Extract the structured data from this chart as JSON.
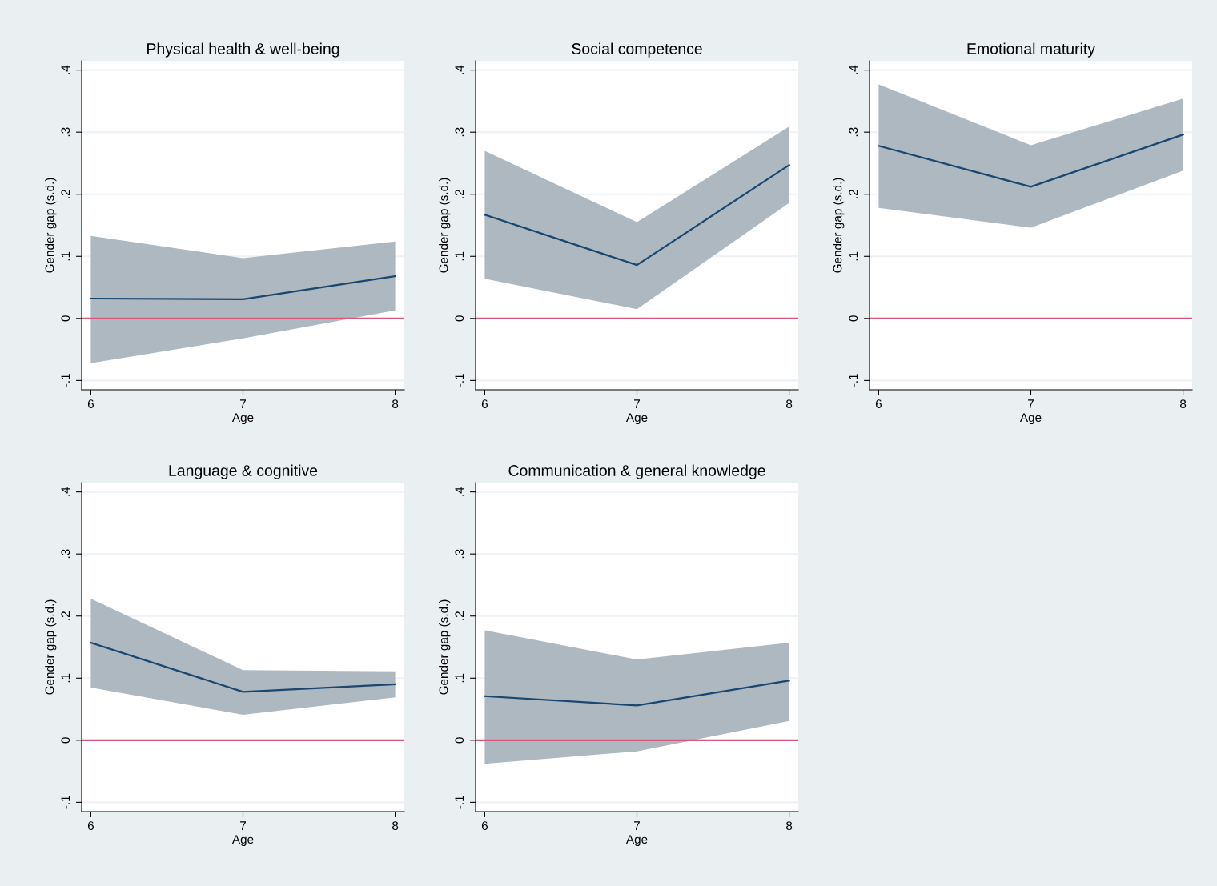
{
  "chart_data": [
    {
      "type": "line",
      "title": "Physical health & well-being",
      "xlabel": "Age",
      "ylabel": "Gender gap (s.d.)",
      "x": [
        6,
        7,
        8
      ],
      "xlim": [
        5.94,
        8.06
      ],
      "xticks": [
        6,
        7,
        8
      ],
      "ylim": [
        -0.115,
        0.415
      ],
      "yticks": [
        {
          "value": -0.1,
          "label": "-.1"
        },
        {
          "value": 0,
          "label": "0"
        },
        {
          "value": 0.1,
          "label": ".1"
        },
        {
          "value": 0.2,
          "label": ".2"
        },
        {
          "value": 0.3,
          "label": ".3"
        },
        {
          "value": 0.4,
          "label": ".4"
        }
      ],
      "grid": "y",
      "legend": false,
      "series": [
        {
          "color": "#1a476f",
          "values": [
            0.032,
            0.031,
            0.068
          ],
          "lower": [
            -0.072,
            -0.032,
            0.013
          ],
          "upper": [
            0.133,
            0.097,
            0.124
          ]
        }
      ],
      "ref_lines": [
        {
          "axis": "y",
          "value": 0,
          "color": "#d8577a"
        }
      ]
    },
    {
      "type": "line",
      "title": "Social competence",
      "xlabel": "Age",
      "ylabel": "Gender gap (s.d.)",
      "x": [
        6,
        7,
        8
      ],
      "xlim": [
        5.94,
        8.06
      ],
      "xticks": [
        6,
        7,
        8
      ],
      "ylim": [
        -0.115,
        0.415
      ],
      "yticks": [
        {
          "value": -0.1,
          "label": "-.1"
        },
        {
          "value": 0,
          "label": "0"
        },
        {
          "value": 0.1,
          "label": ".1"
        },
        {
          "value": 0.2,
          "label": ".2"
        },
        {
          "value": 0.3,
          "label": ".3"
        },
        {
          "value": 0.4,
          "label": ".4"
        }
      ],
      "grid": "y",
      "legend": false,
      "series": [
        {
          "color": "#1a476f",
          "values": [
            0.167,
            0.086,
            0.247
          ],
          "lower": [
            0.064,
            0.015,
            0.186
          ],
          "upper": [
            0.27,
            0.155,
            0.309
          ]
        }
      ],
      "ref_lines": [
        {
          "axis": "y",
          "value": 0,
          "color": "#d8577a"
        }
      ]
    },
    {
      "type": "line",
      "title": "Emotional maturity",
      "xlabel": "Age",
      "ylabel": "Gender gap (s.d.)",
      "x": [
        6,
        7,
        8
      ],
      "xlim": [
        5.94,
        8.06
      ],
      "xticks": [
        6,
        7,
        8
      ],
      "ylim": [
        -0.115,
        0.415
      ],
      "yticks": [
        {
          "value": -0.1,
          "label": "-.1"
        },
        {
          "value": 0,
          "label": "0"
        },
        {
          "value": 0.1,
          "label": ".1"
        },
        {
          "value": 0.2,
          "label": ".2"
        },
        {
          "value": 0.3,
          "label": ".3"
        },
        {
          "value": 0.4,
          "label": ".4"
        }
      ],
      "grid": "y",
      "legend": false,
      "series": [
        {
          "color": "#1a476f",
          "values": [
            0.278,
            0.212,
            0.296
          ],
          "lower": [
            0.178,
            0.146,
            0.238
          ],
          "upper": [
            0.377,
            0.279,
            0.354
          ]
        }
      ],
      "ref_lines": [
        {
          "axis": "y",
          "value": 0,
          "color": "#d8577a"
        }
      ]
    },
    {
      "type": "line",
      "title": "Language & cognitive",
      "xlabel": "Age",
      "ylabel": "Gender gap (s.d.)",
      "x": [
        6,
        7,
        8
      ],
      "xlim": [
        5.94,
        8.06
      ],
      "xticks": [
        6,
        7,
        8
      ],
      "ylim": [
        -0.115,
        0.415
      ],
      "yticks": [
        {
          "value": -0.1,
          "label": "-.1"
        },
        {
          "value": 0,
          "label": "0"
        },
        {
          "value": 0.1,
          "label": ".1"
        },
        {
          "value": 0.2,
          "label": ".2"
        },
        {
          "value": 0.3,
          "label": ".3"
        },
        {
          "value": 0.4,
          "label": ".4"
        }
      ],
      "grid": "y",
      "legend": false,
      "series": [
        {
          "color": "#1a476f",
          "values": [
            0.157,
            0.078,
            0.09
          ],
          "lower": [
            0.085,
            0.041,
            0.069
          ],
          "upper": [
            0.228,
            0.113,
            0.111
          ]
        }
      ],
      "ref_lines": [
        {
          "axis": "y",
          "value": 0,
          "color": "#d8577a"
        }
      ]
    },
    {
      "type": "line",
      "title": "Communication & general knowledge",
      "xlabel": "Age",
      "ylabel": "Gender gap (s.d.)",
      "x": [
        6,
        7,
        8
      ],
      "xlim": [
        5.94,
        8.06
      ],
      "xticks": [
        6,
        7,
        8
      ],
      "ylim": [
        -0.115,
        0.415
      ],
      "yticks": [
        {
          "value": -0.1,
          "label": "-.1"
        },
        {
          "value": 0,
          "label": "0"
        },
        {
          "value": 0.1,
          "label": ".1"
        },
        {
          "value": 0.2,
          "label": ".2"
        },
        {
          "value": 0.3,
          "label": ".3"
        },
        {
          "value": 0.4,
          "label": ".4"
        }
      ],
      "grid": "y",
      "legend": false,
      "series": [
        {
          "color": "#1a476f",
          "values": [
            0.071,
            0.056,
            0.096
          ],
          "lower": [
            -0.038,
            -0.018,
            0.031
          ],
          "upper": [
            0.177,
            0.13,
            0.157
          ]
        }
      ],
      "ref_lines": [
        {
          "axis": "y",
          "value": 0,
          "color": "#d8577a"
        }
      ]
    }
  ]
}
